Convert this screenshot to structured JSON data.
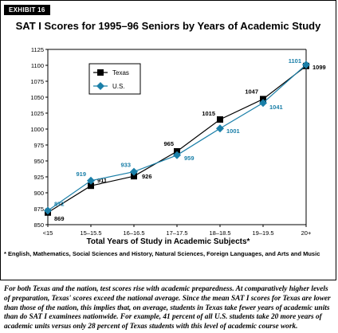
{
  "exhibit_label": "EXHIBIT 16",
  "footnote": "* English, Mathematics, Social Sciences and History, Natural Sciences, Foreign Languages, and Arts and Music",
  "caption": "For both Texas and the nation, test scores rise with academic preparedness. At comparatively higher levels of preparation, Texas' scores exceed the national average. Since the mean SAT I scores for Texas are lower than those of the nation, this implies that, on average, students in Texas take fewer years of academic units than do SAT I examinees nationwide. For example, 41 percent of all U.S. students take 20 more years of academic units versus only 28 percent of Texas students with this level of academic course work.",
  "chart_data": {
    "type": "line",
    "title": "SAT I Scores for 1995–96 Seniors by Years of Academic Study",
    "xlabel": "Total Years of Study in Academic Subjects*",
    "ylabel": "",
    "categories": [
      "<15",
      "15–15.5",
      "16–16.5",
      "17–17.5",
      "18–18.5",
      "19–19.5",
      "20+"
    ],
    "ylim": [
      850,
      1125
    ],
    "yticks": [
      "850",
      "875",
      "900",
      "925",
      "950",
      "975",
      "1000",
      "1025",
      "1050",
      "1075",
      "1100",
      "1125"
    ],
    "legend_position": "top-left",
    "grid": false,
    "series": [
      {
        "name": "Texas",
        "color": "#000000",
        "marker": "square",
        "values": [
          869,
          911,
          926,
          965,
          1015,
          1047,
          1099
        ],
        "labels": [
          "869",
          "911",
          "926",
          "965",
          "1015",
          "1047",
          "1099"
        ]
      },
      {
        "name": "U.S.",
        "color": "#1a7fa8",
        "marker": "diamond",
        "values": [
          872,
          919,
          933,
          959,
          1001,
          1041,
          1101
        ],
        "labels": [
          "872",
          "919",
          "933",
          "959",
          "1001",
          "1041",
          "1101"
        ]
      }
    ]
  }
}
